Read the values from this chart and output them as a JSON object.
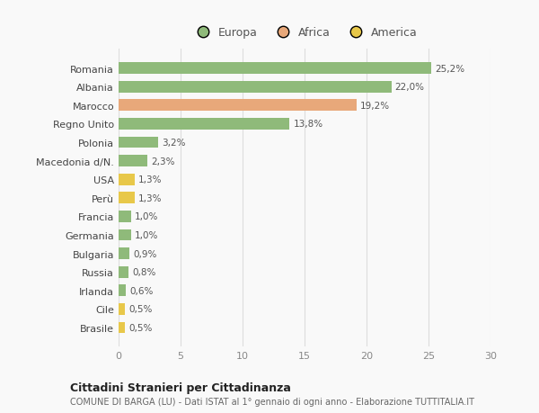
{
  "categories": [
    "Brasile",
    "Cile",
    "Irlanda",
    "Russia",
    "Bulgaria",
    "Germania",
    "Francia",
    "Perù",
    "USA",
    "Macedonia d/N.",
    "Polonia",
    "Regno Unito",
    "Marocco",
    "Albania",
    "Romania"
  ],
  "values": [
    0.5,
    0.5,
    0.6,
    0.8,
    0.9,
    1.0,
    1.0,
    1.3,
    1.3,
    2.3,
    3.2,
    13.8,
    19.2,
    22.0,
    25.2
  ],
  "colors": [
    "#e8c84a",
    "#e8c84a",
    "#8fba7a",
    "#8fba7a",
    "#8fba7a",
    "#8fba7a",
    "#8fba7a",
    "#e8c84a",
    "#e8c84a",
    "#8fba7a",
    "#8fba7a",
    "#8fba7a",
    "#e8a87a",
    "#8fba7a",
    "#8fba7a"
  ],
  "labels": [
    "0,5%",
    "0,5%",
    "0,6%",
    "0,8%",
    "0,9%",
    "1,0%",
    "1,0%",
    "1,3%",
    "1,3%",
    "2,3%",
    "3,2%",
    "13,8%",
    "19,2%",
    "22,0%",
    "25,2%"
  ],
  "legend": [
    {
      "label": "Europa",
      "color": "#8fba7a"
    },
    {
      "label": "Africa",
      "color": "#e8a87a"
    },
    {
      "label": "America",
      "color": "#e8c84a"
    }
  ],
  "xlim": [
    0,
    30
  ],
  "xticks": [
    0,
    5,
    10,
    15,
    20,
    25,
    30
  ],
  "title1": "Cittadini Stranieri per Cittadinanza",
  "title2": "COMUNE DI BARGA (LU) - Dati ISTAT al 1° gennaio di ogni anno - Elaborazione TUTTITALIA.IT",
  "bg_color": "#f9f9f9",
  "grid_color": "#dddddd"
}
